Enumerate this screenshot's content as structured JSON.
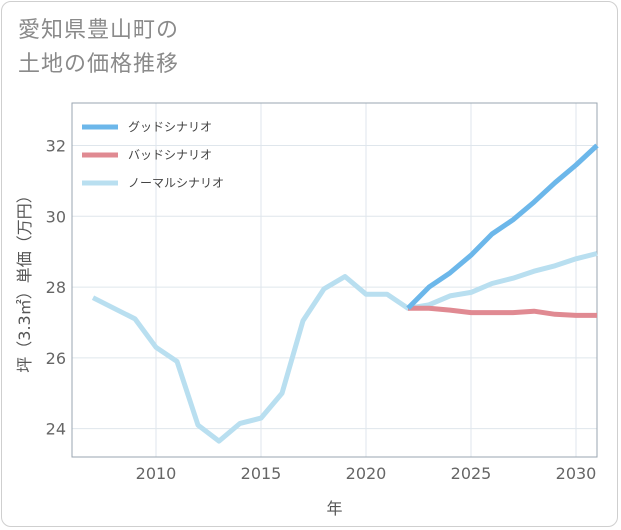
{
  "header": {
    "title_line1": "愛知県豊山町の",
    "title_line2": "土地の価格推移"
  },
  "chart_data": {
    "type": "line",
    "title": "愛知県豊山町の土地の価格推移",
    "xlabel": "年",
    "ylabel": "坪（3.3㎡）単価（万円）",
    "xlim": [
      2006,
      2031
    ],
    "ylim": [
      23.2,
      33.2
    ],
    "xticks": [
      2010,
      2015,
      2020,
      2025,
      2030
    ],
    "yticks": [
      24,
      26,
      28,
      30,
      32
    ],
    "grid": true,
    "legend_position": "top-left",
    "series": [
      {
        "name": "グッドシナリオ",
        "color": "#6cb7ea",
        "x": [
          2022,
          2023,
          2024,
          2025,
          2026,
          2027,
          2028,
          2029,
          2030,
          2031
        ],
        "y": [
          27.4,
          28.0,
          28.4,
          28.9,
          29.5,
          29.9,
          30.4,
          30.95,
          31.45,
          32.0
        ]
      },
      {
        "name": "バッドシナリオ",
        "color": "#e08a92",
        "x": [
          2022,
          2023,
          2024,
          2025,
          2026,
          2027,
          2028,
          2029,
          2030,
          2031
        ],
        "y": [
          27.4,
          27.4,
          27.35,
          27.28,
          27.28,
          27.28,
          27.32,
          27.23,
          27.2,
          27.2
        ]
      },
      {
        "name": "ノーマルシナリオ",
        "color": "#b9dff0",
        "x": [
          2007,
          2008,
          2009,
          2010,
          2011,
          2012,
          2013,
          2014,
          2015,
          2016,
          2017,
          2018,
          2019,
          2020,
          2021,
          2022,
          2023,
          2024,
          2025,
          2026,
          2027,
          2028,
          2029,
          2030,
          2031
        ],
        "y": [
          27.7,
          27.4,
          27.1,
          26.3,
          25.9,
          24.1,
          23.65,
          24.15,
          24.3,
          25.0,
          27.05,
          27.95,
          28.3,
          27.8,
          27.8,
          27.4,
          27.5,
          27.75,
          27.85,
          28.1,
          28.25,
          28.45,
          28.6,
          28.8,
          28.95
        ]
      }
    ]
  }
}
